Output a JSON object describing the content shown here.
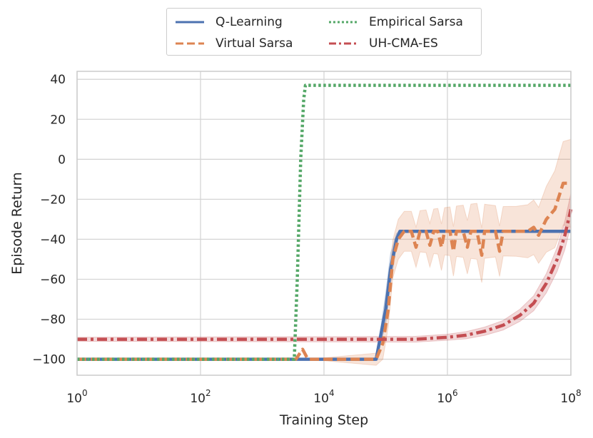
{
  "chart_data": {
    "type": "line",
    "xlabel": "Training Step",
    "ylabel": "Episode Return",
    "xscale": "log",
    "xlim": [
      1,
      100000000
    ],
    "ylim": [
      -108,
      44
    ],
    "grid": true,
    "legend_position": "top-center",
    "x_ticks": [
      {
        "base": "10",
        "exp": "0",
        "value": 1
      },
      {
        "base": "10",
        "exp": "2",
        "value": 100
      },
      {
        "base": "10",
        "exp": "4",
        "value": 10000
      },
      {
        "base": "10",
        "exp": "6",
        "value": 1000000
      },
      {
        "base": "10",
        "exp": "8",
        "value": 100000000
      }
    ],
    "y_ticks": [
      {
        "label": "40",
        "value": 40
      },
      {
        "label": "20",
        "value": 20
      },
      {
        "label": "0",
        "value": 0
      },
      {
        "label": "−20",
        "value": -20
      },
      {
        "label": "−40",
        "value": -40
      },
      {
        "label": "−60",
        "value": -60
      },
      {
        "label": "−80",
        "value": -80
      },
      {
        "label": "−100",
        "value": -100
      }
    ],
    "series": [
      {
        "name": "Q-Learning",
        "color": "#4c72b0",
        "style": "solid",
        "points": [
          [
            1,
            -100
          ],
          [
            70000,
            -100
          ],
          [
            100000,
            -75
          ],
          [
            120000,
            -55
          ],
          [
            150000,
            -40
          ],
          [
            170000,
            -36
          ],
          [
            100000000,
            -36
          ]
        ],
        "band_halfwidth": [
          [
            1,
            0
          ],
          [
            70000,
            0
          ],
          [
            85000,
            6
          ],
          [
            100000,
            8
          ],
          [
            120000,
            8
          ],
          [
            150000,
            3
          ],
          [
            170000,
            0
          ],
          [
            100000000,
            0
          ]
        ]
      },
      {
        "name": "Virtual Sarsa",
        "color": "#dd8452",
        "style": "dashed",
        "points": [
          [
            1,
            -100
          ],
          [
            3500,
            -100
          ],
          [
            4500,
            -95
          ],
          [
            5500,
            -100
          ],
          [
            70000,
            -100
          ],
          [
            90000,
            -92
          ],
          [
            110000,
            -75
          ],
          [
            130000,
            -50
          ],
          [
            160000,
            -40
          ],
          [
            200000,
            -36
          ],
          [
            260000,
            -36
          ],
          [
            310000,
            -44
          ],
          [
            360000,
            -36
          ],
          [
            450000,
            -36
          ],
          [
            520000,
            -43
          ],
          [
            600000,
            -36
          ],
          [
            700000,
            -36
          ],
          [
            800000,
            -44
          ],
          [
            900000,
            -36
          ],
          [
            1100000,
            -36
          ],
          [
            1250000,
            -46
          ],
          [
            1400000,
            -36
          ],
          [
            1800000,
            -36
          ],
          [
            2100000,
            -44
          ],
          [
            2400000,
            -36
          ],
          [
            3000000,
            -36
          ],
          [
            3600000,
            -48
          ],
          [
            4000000,
            -36
          ],
          [
            6000000,
            -36
          ],
          [
            7000000,
            -46
          ],
          [
            8000000,
            -36
          ],
          [
            13000000,
            -36
          ],
          [
            20000000,
            -36
          ],
          [
            25000000,
            -34
          ],
          [
            30000000,
            -38
          ],
          [
            40000000,
            -30
          ],
          [
            55000000,
            -25
          ],
          [
            75000000,
            -12
          ],
          [
            100000000,
            -12
          ]
        ],
        "band_halfwidth": [
          [
            1,
            0
          ],
          [
            60000,
            0
          ],
          [
            90000,
            8
          ],
          [
            150000,
            10
          ],
          [
            300000,
            10
          ],
          [
            1000000,
            12
          ],
          [
            3000000,
            14
          ],
          [
            10000000,
            12
          ],
          [
            30000000,
            14
          ],
          [
            60000000,
            20
          ],
          [
            100000000,
            22
          ]
        ]
      },
      {
        "name": "Empirical Sarsa",
        "color": "#55a868",
        "style": "dotted",
        "points": [
          [
            1,
            -100
          ],
          [
            3300,
            -100
          ],
          [
            3700,
            -60
          ],
          [
            4200,
            0
          ],
          [
            4700,
            30
          ],
          [
            5000,
            37
          ],
          [
            100000000,
            37
          ]
        ],
        "band_halfwidth": [
          [
            1,
            0
          ],
          [
            100000000,
            0
          ]
        ]
      },
      {
        "name": "UH-CMA-ES",
        "color": "#c44e52",
        "style": "dashdot",
        "points": [
          [
            1,
            -90
          ],
          [
            300000,
            -90
          ],
          [
            1000000,
            -89
          ],
          [
            2000000,
            -88
          ],
          [
            4000000,
            -86
          ],
          [
            8000000,
            -83
          ],
          [
            15000000,
            -78
          ],
          [
            25000000,
            -72
          ],
          [
            40000000,
            -62
          ],
          [
            60000000,
            -50
          ],
          [
            80000000,
            -38
          ],
          [
            100000000,
            -25
          ]
        ],
        "band_halfwidth": [
          [
            1,
            1
          ],
          [
            1000000,
            1.5
          ],
          [
            10000000,
            2.5
          ],
          [
            30000000,
            4
          ],
          [
            60000000,
            6
          ],
          [
            100000000,
            8
          ]
        ]
      }
    ]
  }
}
